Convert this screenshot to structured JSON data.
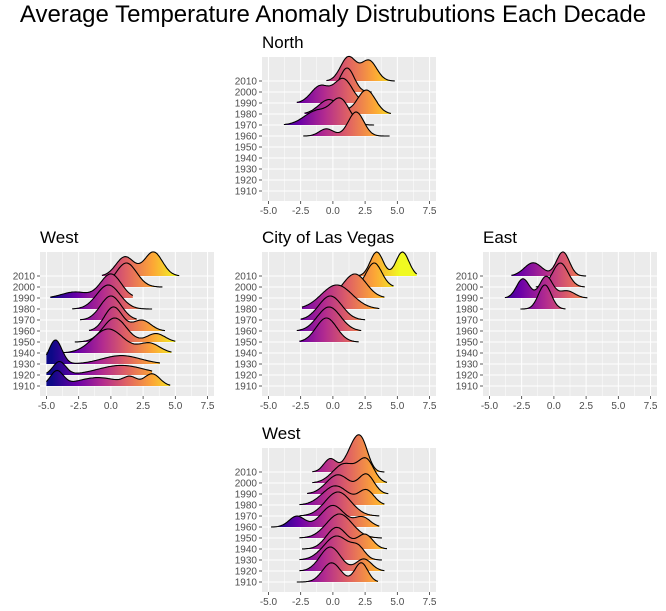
{
  "title": "Average Temperature Anomaly Distrubutions Each Decade",
  "colors": {
    "panel_bg": "#ebebeb",
    "grid": "#ffffff",
    "ridge_outline": "#000000",
    "gradient": [
      "#0d0887",
      "#6a00a8",
      "#b12a90",
      "#e16462",
      "#fca636",
      "#f0f921"
    ]
  },
  "chart_data": [
    {
      "type": "ridgeline",
      "title": "North",
      "position": "top",
      "categories": [
        "1910",
        "1920",
        "1930",
        "1940",
        "1950",
        "1960",
        "1970",
        "1980",
        "1990",
        "2000",
        "2010"
      ],
      "xlim": [
        -5.5,
        8
      ],
      "x_ticks": [
        "-5.0",
        "-2.5",
        "0.0",
        "2.5",
        "5.0",
        "7.5"
      ],
      "grid": true,
      "series": [
        {
          "decade": "1960",
          "data_range": [
            -2.3,
            4.4
          ],
          "peaks": [
            {
              "x": -0.5,
              "sd": 0.55,
              "h": 0.3
            },
            {
              "x": 1.8,
              "sd": 0.6,
              "h": 1.0
            }
          ]
        },
        {
          "decade": "1970",
          "data_range": [
            -3.8,
            3.2
          ],
          "peaks": [
            {
              "x": -1.2,
              "sd": 1.0,
              "h": 0.6
            },
            {
              "x": 0.6,
              "sd": 0.7,
              "h": 1.0
            }
          ]
        },
        {
          "decade": "1980",
          "data_range": [
            -2.2,
            4.5
          ],
          "peaks": [
            {
              "x": -0.3,
              "sd": 0.8,
              "h": 0.6
            },
            {
              "x": 2.6,
              "sd": 0.7,
              "h": 1.0
            }
          ]
        },
        {
          "decade": "1990",
          "data_range": [
            -2.8,
            2.4
          ],
          "peaks": [
            {
              "x": -1.0,
              "sd": 0.7,
              "h": 0.7
            },
            {
              "x": 0.8,
              "sd": 0.7,
              "h": 1.0
            }
          ]
        },
        {
          "decade": "2000",
          "data_range": [
            -0.8,
            3.0
          ],
          "peaks": [
            {
              "x": 1.1,
              "sd": 0.55,
              "h": 1.0
            }
          ]
        },
        {
          "decade": "2010",
          "data_range": [
            -0.5,
            4.8
          ],
          "peaks": [
            {
              "x": 1.2,
              "sd": 0.6,
              "h": 1.0
            },
            {
              "x": 2.8,
              "sd": 0.6,
              "h": 0.85
            }
          ]
        }
      ]
    },
    {
      "type": "ridgeline",
      "title": "West",
      "position": "left",
      "categories": [
        "1910",
        "1920",
        "1930",
        "1940",
        "1950",
        "1960",
        "1970",
        "1980",
        "1990",
        "2000",
        "2010"
      ],
      "xlim": [
        -5.5,
        8
      ],
      "x_ticks": [
        "-5.0",
        "-2.5",
        "0.0",
        "2.5",
        "5.0",
        "7.5"
      ],
      "grid": true,
      "series": [
        {
          "decade": "1910",
          "data_range": [
            -5.0,
            4.6
          ],
          "peaks": [
            {
              "x": -4.2,
              "sd": 0.5,
              "h": 0.6
            },
            {
              "x": -1.0,
              "sd": 1.6,
              "h": 0.35
            },
            {
              "x": 1.5,
              "sd": 0.5,
              "h": 0.3
            },
            {
              "x": 3.2,
              "sd": 0.6,
              "h": 0.5
            }
          ]
        },
        {
          "decade": "1920",
          "data_range": [
            -5.0,
            3.2
          ],
          "peaks": [
            {
              "x": -4.0,
              "sd": 0.5,
              "h": 0.55
            },
            {
              "x": 0.8,
              "sd": 1.8,
              "h": 0.4
            }
          ]
        },
        {
          "decade": "1930",
          "data_range": [
            -5.0,
            3.8
          ],
          "peaks": [
            {
              "x": -4.3,
              "sd": 0.5,
              "h": 1.0
            },
            {
              "x": 0.8,
              "sd": 1.5,
              "h": 0.35
            }
          ]
        },
        {
          "decade": "1940",
          "data_range": [
            -5.0,
            4.7
          ],
          "peaks": [
            {
              "x": -0.2,
              "sd": 1.2,
              "h": 1.0
            },
            {
              "x": 3.0,
              "sd": 0.8,
              "h": 0.4
            }
          ]
        },
        {
          "decade": "1950",
          "data_range": [
            -2.8,
            5.0
          ],
          "peaks": [
            {
              "x": 0.3,
              "sd": 0.9,
              "h": 1.0
            },
            {
              "x": 3.5,
              "sd": 0.7,
              "h": 0.35
            }
          ]
        },
        {
          "decade": "1960",
          "data_range": [
            -1.7,
            4.2
          ],
          "peaks": [
            {
              "x": 0.2,
              "sd": 0.7,
              "h": 1.0
            },
            {
              "x": 2.4,
              "sd": 0.7,
              "h": 0.45
            }
          ]
        },
        {
          "decade": "1970",
          "data_range": [
            -2.4,
            2.0
          ],
          "peaks": [
            {
              "x": 0.0,
              "sd": 0.8,
              "h": 1.0
            }
          ]
        },
        {
          "decade": "1980",
          "data_range": [
            -3.0,
            3.2
          ],
          "peaks": [
            {
              "x": -0.2,
              "sd": 0.9,
              "h": 1.0
            }
          ]
        },
        {
          "decade": "1990",
          "data_range": [
            -4.7,
            1.7
          ],
          "peaks": [
            {
              "x": -2.8,
              "sd": 1.0,
              "h": 0.25
            },
            {
              "x": 0.0,
              "sd": 0.8,
              "h": 1.0
            }
          ]
        },
        {
          "decade": "2000",
          "data_range": [
            -0.9,
            4.0
          ],
          "peaks": [
            {
              "x": 1.2,
              "sd": 0.8,
              "h": 1.0
            }
          ]
        },
        {
          "decade": "2010",
          "data_range": [
            -0.7,
            5.3
          ],
          "peaks": [
            {
              "x": 1.1,
              "sd": 0.7,
              "h": 0.8
            },
            {
              "x": 3.3,
              "sd": 0.7,
              "h": 1.0
            }
          ]
        }
      ]
    },
    {
      "type": "ridgeline",
      "title": "City of Las Vegas",
      "position": "center",
      "categories": [
        "1910",
        "1920",
        "1930",
        "1940",
        "1950",
        "1960",
        "1970",
        "1980",
        "1990",
        "2000",
        "2010"
      ],
      "xlim": [
        -5.5,
        8
      ],
      "x_ticks": [
        "-5.0",
        "-2.5",
        "0.0",
        "2.5",
        "5.0",
        "7.5"
      ],
      "grid": true,
      "series": [
        {
          "decade": "1950",
          "data_range": [
            -2.6,
            2.0
          ],
          "peaks": [
            {
              "x": -0.5,
              "sd": 0.8,
              "h": 1.0
            }
          ]
        },
        {
          "decade": "1960",
          "data_range": [
            -2.8,
            2.2
          ],
          "peaks": [
            {
              "x": -0.3,
              "sd": 0.9,
              "h": 1.0
            }
          ]
        },
        {
          "decade": "1970",
          "data_range": [
            -2.5,
            2.5
          ],
          "peaks": [
            {
              "x": -0.2,
              "sd": 0.9,
              "h": 1.0
            }
          ]
        },
        {
          "decade": "1980",
          "data_range": [
            -2.4,
            3.6
          ],
          "peaks": [
            {
              "x": 0.3,
              "sd": 1.2,
              "h": 1.0
            }
          ]
        },
        {
          "decade": "1990",
          "data_range": [
            -0.6,
            4.0
          ],
          "peaks": [
            {
              "x": 1.7,
              "sd": 0.9,
              "h": 1.0
            }
          ]
        },
        {
          "decade": "2000",
          "data_range": [
            1.2,
            4.7
          ],
          "peaks": [
            {
              "x": 3.2,
              "sd": 0.6,
              "h": 1.0
            }
          ]
        },
        {
          "decade": "2010",
          "data_range": [
            1.4,
            6.5
          ],
          "peaks": [
            {
              "x": 3.4,
              "sd": 0.5,
              "h": 1.0
            },
            {
              "x": 5.4,
              "sd": 0.5,
              "h": 1.0
            }
          ]
        }
      ]
    },
    {
      "type": "ridgeline",
      "title": "East",
      "position": "right",
      "categories": [
        "1910",
        "1920",
        "1930",
        "1940",
        "1950",
        "1960",
        "1970",
        "1980",
        "1990",
        "2000",
        "2010"
      ],
      "xlim": [
        -5.5,
        8
      ],
      "x_ticks": [
        "-5.0",
        "-2.5",
        "0.0",
        "2.5",
        "5.0",
        "7.5"
      ],
      "grid": true,
      "series": [
        {
          "decade": "1980",
          "data_range": [
            -2.6,
            0.9
          ],
          "peaks": [
            {
              "x": -0.7,
              "sd": 0.5,
              "h": 1.0
            }
          ]
        },
        {
          "decade": "1990",
          "data_range": [
            -3.8,
            2.6
          ],
          "peaks": [
            {
              "x": -2.4,
              "sd": 0.5,
              "h": 0.8
            },
            {
              "x": -0.6,
              "sd": 0.5,
              "h": 0.9
            },
            {
              "x": 1.0,
              "sd": 0.6,
              "h": 0.3
            }
          ]
        },
        {
          "decade": "2000",
          "data_range": [
            -1.4,
            2.4
          ],
          "peaks": [
            {
              "x": 0.5,
              "sd": 0.6,
              "h": 1.0
            }
          ]
        },
        {
          "decade": "2010",
          "data_range": [
            -3.3,
            2.5
          ],
          "peaks": [
            {
              "x": -1.6,
              "sd": 0.7,
              "h": 0.55
            },
            {
              "x": 0.7,
              "sd": 0.5,
              "h": 1.0
            }
          ]
        }
      ]
    },
    {
      "type": "ridgeline",
      "title": "West",
      "position": "bottom",
      "categories": [
        "1910",
        "1920",
        "1930",
        "1940",
        "1950",
        "1960",
        "1970",
        "1980",
        "1990",
        "2000",
        "2010"
      ],
      "xlim": [
        -5.5,
        8
      ],
      "x_ticks": [
        "-5.0",
        "-2.5",
        "0.0",
        "2.5",
        "5.0",
        "7.5"
      ],
      "grid": true,
      "series": [
        {
          "decade": "1910",
          "data_range": [
            -2.8,
            3.5
          ],
          "peaks": [
            {
              "x": -0.1,
              "sd": 0.7,
              "h": 0.8
            },
            {
              "x": 2.2,
              "sd": 0.5,
              "h": 0.8
            }
          ]
        },
        {
          "decade": "1920",
          "data_range": [
            -2.6,
            4.0
          ],
          "peaks": [
            {
              "x": -0.2,
              "sd": 0.8,
              "h": 1.0
            },
            {
              "x": 2.4,
              "sd": 0.6,
              "h": 0.5
            }
          ]
        },
        {
          "decade": "1930",
          "data_range": [
            -2.6,
            3.8
          ],
          "peaks": [
            {
              "x": 0.3,
              "sd": 1.0,
              "h": 1.0
            },
            {
              "x": 2.0,
              "sd": 0.5,
              "h": 0.4
            }
          ]
        },
        {
          "decade": "1940",
          "data_range": [
            -2.4,
            4.2
          ],
          "peaks": [
            {
              "x": 0.3,
              "sd": 0.8,
              "h": 0.9
            },
            {
              "x": 2.5,
              "sd": 0.6,
              "h": 0.6
            }
          ]
        },
        {
          "decade": "1950",
          "data_range": [
            -2.6,
            3.8
          ],
          "peaks": [
            {
              "x": 0.5,
              "sd": 1.0,
              "h": 1.0
            }
          ]
        },
        {
          "decade": "1960",
          "data_range": [
            -4.8,
            3.6
          ],
          "peaks": [
            {
              "x": -2.8,
              "sd": 0.6,
              "h": 0.45
            },
            {
              "x": 0.0,
              "sd": 0.9,
              "h": 0.9
            },
            {
              "x": 2.3,
              "sd": 0.6,
              "h": 0.4
            }
          ]
        },
        {
          "decade": "1970",
          "data_range": [
            -2.6,
            3.6
          ],
          "peaks": [
            {
              "x": 0.4,
              "sd": 1.0,
              "h": 1.0
            }
          ]
        },
        {
          "decade": "1980",
          "data_range": [
            -2.6,
            4.0
          ],
          "peaks": [
            {
              "x": 0.2,
              "sd": 1.0,
              "h": 0.8
            },
            {
              "x": 2.6,
              "sd": 0.6,
              "h": 0.6
            }
          ]
        },
        {
          "decade": "1990",
          "data_range": [
            -2.0,
            4.3
          ],
          "peaks": [
            {
              "x": 0.4,
              "sd": 0.9,
              "h": 0.8
            },
            {
              "x": 2.6,
              "sd": 0.6,
              "h": 0.8
            }
          ]
        },
        {
          "decade": "2000",
          "data_range": [
            -1.6,
            4.2
          ],
          "peaks": [
            {
              "x": 0.9,
              "sd": 0.9,
              "h": 0.8
            },
            {
              "x": 2.6,
              "sd": 0.6,
              "h": 0.9
            }
          ]
        },
        {
          "decade": "2010",
          "data_range": [
            -1.6,
            4.0
          ],
          "peaks": [
            {
              "x": -0.2,
              "sd": 0.5,
              "h": 0.55
            },
            {
              "x": 1.6,
              "sd": 0.6,
              "h": 1.0
            },
            {
              "x": 2.3,
              "sd": 0.5,
              "h": 0.9
            }
          ]
        }
      ]
    }
  ]
}
